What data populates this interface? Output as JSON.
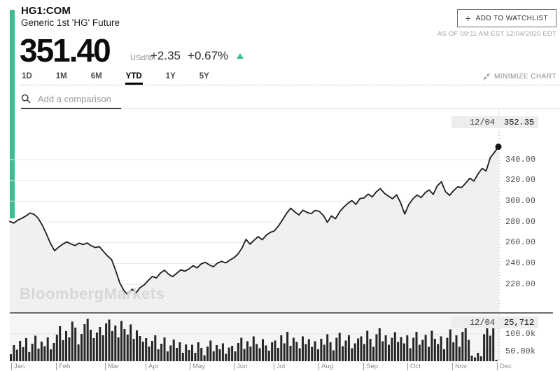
{
  "colors": {
    "accent_green": "#3EBD94",
    "line": "#1b1b1b",
    "area_fill": "#f0f0f0",
    "bar_color": "#262626",
    "grid_color": "#e8e8e8",
    "volume_bg": "#f5f5f5"
  },
  "header": {
    "symbol": "HG1:COM",
    "name": "Generic 1st 'HG' Future",
    "watchlist_plus": "+",
    "watchlist_label": "ADD TO WATCHLIST",
    "as_of": "AS OF 09:11 AM EST 12/04/2020 EDT"
  },
  "quote": {
    "price": "351.40",
    "unit": "USd/lb.",
    "change": "+2.35",
    "change_pct": "+0.67%",
    "direction": "up"
  },
  "ranges": {
    "items": [
      "1D",
      "1M",
      "6M",
      "YTD",
      "1Y",
      "5Y"
    ],
    "active": "YTD"
  },
  "minimize_label": "MINIMIZE CHART",
  "comparison": {
    "placeholder": "Add a comparison"
  },
  "watermark": "BloombergMarkets",
  "crosshair": {
    "date": "12/04",
    "price": "352.35",
    "volume": "25,712"
  },
  "chart_data": {
    "type": "line",
    "title": "HG1:COM Generic 1st 'HG' Future — YTD 2020 price (USd/lb.) with daily volume",
    "x_axis": {
      "unit": "month",
      "labels": [
        "Jan",
        "Feb",
        "Mar",
        "Apr",
        "May",
        "Jun",
        "Jul",
        "Aug",
        "Sep",
        "Oct",
        "Nov",
        "Dec"
      ]
    },
    "y_axis": {
      "side": "right",
      "tick_labels": [
        "340.00",
        "320.00",
        "300.00",
        "280.00",
        "260.00",
        "240.00",
        "220.00"
      ],
      "range_shown": [
        194,
        358
      ]
    },
    "volume_axis": {
      "tick_labels": [
        "100.0k",
        "50.00k"
      ]
    },
    "legend": "none",
    "grid": "horizontal",
    "series": [
      {
        "name": "price_USd_per_lb",
        "type": "area-line",
        "values": [
          280.5,
          278.9,
          281.8,
          283.6,
          285.9,
          288.6,
          287.2,
          283.5,
          276.8,
          268.4,
          259.2,
          252.3,
          255.8,
          258.6,
          260.8,
          258.9,
          257.3,
          259.6,
          258.2,
          259.8,
          257.1,
          255.4,
          256.2,
          251.6,
          247.3,
          243.8,
          233.5,
          221.6,
          214.2,
          209.8,
          215.3,
          211.9,
          216.8,
          219.4,
          223.7,
          227.6,
          226.1,
          230.9,
          233.6,
          229.8,
          227.4,
          230.7,
          233.9,
          232.6,
          234.8,
          237.9,
          235.8,
          239.6,
          241.2,
          238.7,
          236.9,
          240.3,
          242.1,
          240.6,
          243.2,
          245.4,
          248.9,
          254.8,
          263.2,
          258.6,
          262.4,
          265.9,
          262.8,
          267.3,
          270.0,
          271.4,
          276.3,
          282.1,
          288.4,
          293.2,
          289.6,
          286.8,
          291.3,
          289.2,
          287.9,
          291.1,
          290.2,
          286.4,
          279.6,
          285.8,
          283.1,
          289.7,
          294.2,
          297.8,
          300.6,
          296.9,
          302.4,
          303.1,
          306.8,
          304.1,
          308.9,
          312.2,
          307.6,
          304.9,
          302.3,
          306.1,
          298.4,
          287.6,
          296.8,
          302.2,
          305.9,
          303.4,
          308.1,
          310.8,
          306.5,
          314.9,
          318.7,
          309.2,
          305.6,
          310.1,
          313.8,
          313.2,
          317.6,
          322.1,
          319.4,
          326.2,
          331.5,
          329.1,
          341.8,
          346.9,
          352.35
        ]
      },
      {
        "name": "volume_thousands",
        "type": "bar",
        "values": [
          42,
          68,
          55,
          80,
          62,
          88,
          48,
          72,
          95,
          58,
          78,
          65,
          90,
          56,
          74,
          98,
          122,
          82,
          108,
          90,
          135,
          118,
          70,
          100,
          128,
          143,
          112,
          88,
          104,
          120,
          96,
          130,
          141,
          108,
          124,
          90,
          137,
          114,
          98,
          127,
          86,
          110,
          94,
          78,
          88,
          64,
          80,
          96,
          56,
          72,
          90,
          50,
          67,
          84,
          60,
          76,
          46,
          70,
          54,
          69,
          46,
          76,
          60,
          39,
          64,
          81,
          50,
          68,
          56,
          73,
          43,
          61,
          66,
          50,
          74,
          89,
          57,
          79,
          64,
          93,
          71,
          59,
          85,
          67,
          52,
          76,
          81,
          60,
          96,
          73,
          106,
          66,
          89,
          77,
          59,
          93,
          71,
          85,
          63,
          79,
          56,
          86,
          69,
          99,
          76,
          53,
          89,
          103,
          65,
          81,
          96,
          59,
          73,
          87,
          93,
          71,
          109,
          86,
          63,
          99,
          116,
          79,
          96,
          69,
          89,
          105,
          77,
          91,
          73,
          96,
          59,
          89,
          106,
          69,
          83,
          97,
          63,
          109,
          86,
          71,
          93,
          56,
          89,
          113,
          76,
          96,
          63,
          106,
          119,
          83,
          38,
          33,
          46,
          36,
          99,
          116,
          95,
          118,
          26
        ]
      }
    ],
    "last_point": {
      "date": "12/04",
      "price": 352.35,
      "volume": 25712
    }
  }
}
